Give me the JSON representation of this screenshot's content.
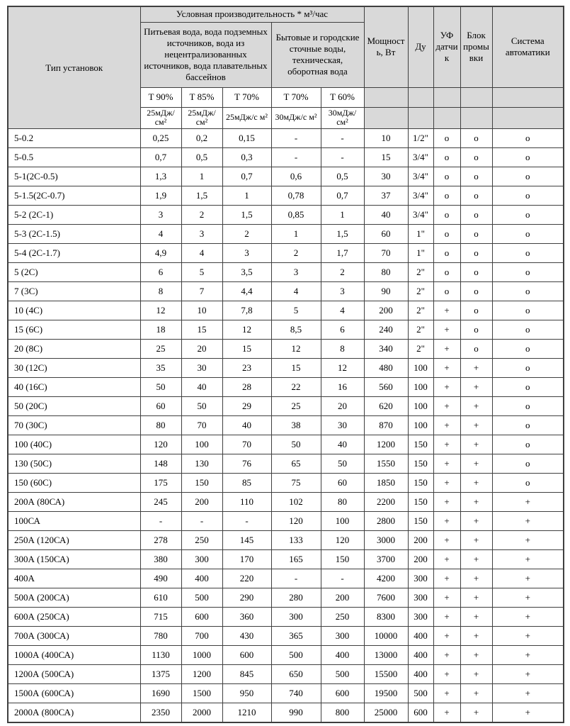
{
  "styles": {
    "header_bg": "#d9d9d9",
    "border_color": "#3f3f3f",
    "text_color": "#000000"
  },
  "table": {
    "header": {
      "type_col": "Тип установок",
      "banner": "Условная производительность * м³/час",
      "group_drinking": "Питьевая вода, вода подземных источников, вода из нецентрализованных источников, вода плавательных бассейнов",
      "group_waste": "Бытовые и городские сточные воды, техническая, оборотная вода",
      "t_labels": [
        {
          "label": "Т 90%",
          "bold": false
        },
        {
          "label": "Т 85%",
          "bold": true
        },
        {
          "label": "Т 70%",
          "bold": false
        },
        {
          "label": "Т 70%",
          "bold": false
        },
        {
          "label": "Т 60%",
          "bold": true
        }
      ],
      "units": [
        {
          "label": "25мДж/ см²",
          "bold": false
        },
        {
          "label": "25мДж/ см²",
          "bold": true
        },
        {
          "label": "25мДж/с м²",
          "bold": false
        },
        {
          "label": "30мДж/с м²",
          "bold": false
        },
        {
          "label": "30мДж/ см²",
          "bold": true
        }
      ],
      "power": "Мощность, Вт",
      "du": "Ду",
      "uv": "УФ датчик",
      "flush": "Блок промывки",
      "automation": "Система автоматики"
    },
    "rows": [
      {
        "type": "5-0.2",
        "t90": "0,25",
        "t85": "0,2",
        "t70_25": "0,15",
        "t70_30": "-",
        "t60": "-",
        "power": "10",
        "du": "1/2\"",
        "uv": "о",
        "flush": "о",
        "auto": "о"
      },
      {
        "type": "5-0.5",
        "t90": "0,7",
        "t85": "0,5",
        "t70_25": "0,3",
        "t70_30": "-",
        "t60": "-",
        "power": "15",
        "du": "3/4\"",
        "uv": "о",
        "flush": "о",
        "auto": "о"
      },
      {
        "type": "5-1(2С-0.5)",
        "t90": "1,3",
        "t85": "1",
        "t70_25": "0,7",
        "t70_30": "0,6",
        "t60": "0,5",
        "power": "30",
        "du": "3/4\"",
        "uv": "о",
        "flush": "о",
        "auto": "о"
      },
      {
        "type": "5-1.5(2С-0.7)",
        "t90": "1,9",
        "t85": "1,5",
        "t70_25": "1",
        "t70_30": "0,78",
        "t60": "0,7",
        "power": "37",
        "du": "3/4\"",
        "uv": "о",
        "flush": "о",
        "auto": "о"
      },
      {
        "type": "5-2 (2С-1)",
        "t90": "3",
        "t85": "2",
        "t70_25": "1,5",
        "t70_30": "0,85",
        "t60": "1",
        "power": "40",
        "du": "3/4\"",
        "uv": "о",
        "flush": "о",
        "auto": "о"
      },
      {
        "type": "5-3 (2С-1.5)",
        "t90": "4",
        "t85": "3",
        "t70_25": "2",
        "t70_30": "1",
        "t60": "1,5",
        "power": "60",
        "du": "1\"",
        "uv": "о",
        "flush": "о",
        "auto": "о"
      },
      {
        "type": "5-4 (2С-1.7)",
        "t90": "4,9",
        "t85": "4",
        "t70_25": "3",
        "t70_30": "2",
        "t60": "1,7",
        "power": "70",
        "du": "1\"",
        "uv": "о",
        "flush": "о",
        "auto": "о"
      },
      {
        "type": "5 (2С)",
        "t90": "6",
        "t85": "5",
        "t70_25": "3,5",
        "t70_30": "3",
        "t60": "2",
        "power": "80",
        "du": "2\"",
        "uv": "о",
        "flush": "о",
        "auto": "о"
      },
      {
        "type": "7 (3С)",
        "t90": "8",
        "t85": "7",
        "t70_25": "4,4",
        "t70_30": "4",
        "t60": "3",
        "power": "90",
        "du": "2\"",
        "uv": "о",
        "flush": "о",
        "auto": "о"
      },
      {
        "type": "10  (4С)",
        "t90": "12",
        "t85": "10",
        "t70_25": "7,8",
        "t70_30": "5",
        "t60": "4",
        "power": "200",
        "du": "2\"",
        "uv": "+",
        "flush": "о",
        "auto": "о"
      },
      {
        "type": "15 (6С)",
        "t90": "18",
        "t85": "15",
        "t70_25": "12",
        "t70_30": "8,5",
        "t60": "6",
        "power": "240",
        "du": "2\"",
        "uv": "+",
        "flush": "о",
        "auto": "о"
      },
      {
        "type": "20 (8С)",
        "t90": "25",
        "t85": "20",
        "t70_25": "15",
        "t70_30": "12",
        "t60": "8",
        "power": "340",
        "du": "2\"",
        "uv": "+",
        "flush": "о",
        "auto": "о"
      },
      {
        "type": "30 (12С)",
        "t90": "35",
        "t85": "30",
        "t70_25": "23",
        "t70_30": "15",
        "t60": "12",
        "power": "480",
        "du": "100",
        "uv": "+",
        "flush": "+",
        "auto": "о"
      },
      {
        "type": "40 (16С)",
        "t90": "50",
        "t85": "40",
        "t70_25": "28",
        "t70_30": "22",
        "t60": "16",
        "power": "560",
        "du": "100",
        "uv": "+",
        "flush": "+",
        "auto": "о"
      },
      {
        "type": "50  (20С)",
        "t90": "60",
        "t85": "50",
        "t70_25": "29",
        "t70_30": "25",
        "t60": "20",
        "power": "620",
        "du": "100",
        "uv": "+",
        "flush": "+",
        "auto": "о"
      },
      {
        "type": "70 (30С)",
        "t90": "80",
        "t85": "70",
        "t70_25": "40",
        "t70_30": "38",
        "t60": "30",
        "power": "870",
        "du": "100",
        "uv": "+",
        "flush": "+",
        "auto": "о"
      },
      {
        "type": "100 (40С)",
        "t90": "120",
        "t85": "100",
        "t70_25": "70",
        "t70_30": "50",
        "t60": "40",
        "power": "1200",
        "du": "150",
        "uv": "+",
        "flush": "+",
        "auto": "о"
      },
      {
        "type": "130 (50С)",
        "t90": "148",
        "t85": "130",
        "t70_25": "76",
        "t70_30": "65",
        "t60": "50",
        "power": "1550",
        "du": "150",
        "uv": "+",
        "flush": "+",
        "auto": "о"
      },
      {
        "type": "150 (60С)",
        "t90": "175",
        "t85": "150",
        "t70_25": "85",
        "t70_30": "75",
        "t60": "60",
        "power": "1850",
        "du": "150",
        "uv": "+",
        "flush": "+",
        "auto": "о"
      },
      {
        "type": "200А (80СА)",
        "t90": "245",
        "t85": "200",
        "t70_25": "110",
        "t70_30": "102",
        "t60": "80",
        "power": "2200",
        "du": "150",
        "uv": "+",
        "flush": "+",
        "auto": "+"
      },
      {
        "type": "100СА",
        "t90": "-",
        "t85": "-",
        "t70_25": "-",
        "t70_30": "120",
        "t60": "100",
        "power": "2800",
        "du": "150",
        "uv": "+",
        "flush": "+",
        "auto": "+"
      },
      {
        "type": "250А (120СА)",
        "t90": "278",
        "t85": "250",
        "t70_25": "145",
        "t70_30": "133",
        "t60": "120",
        "power": "3000",
        "du": "200",
        "uv": "+",
        "flush": "+",
        "auto": "+"
      },
      {
        "type": "300А (150СА)",
        "t90": "380",
        "t85": "300",
        "t70_25": "170",
        "t70_30": "165",
        "t60": "150",
        "power": "3700",
        "du": "200",
        "uv": "+",
        "flush": "+",
        "auto": "+"
      },
      {
        "type": "400А",
        "t90": "490",
        "t85": "400",
        "t70_25": "220",
        "t70_30": "-",
        "t60": "-",
        "power": "4200",
        "du": "300",
        "uv": "+",
        "flush": "+",
        "auto": "+"
      },
      {
        "type": "500А (200СА)",
        "t90": "610",
        "t85": "500",
        "t70_25": "290",
        "t70_30": "280",
        "t60": "200",
        "power": "7600",
        "du": "300",
        "uv": "+",
        "flush": "+",
        "auto": "+"
      },
      {
        "type": "600А  (250СА)",
        "t90": "715",
        "t85": "600",
        "t70_25": "360",
        "t70_30": "300",
        "t60": "250",
        "power": "8300",
        "du": "300",
        "uv": "+",
        "flush": "+",
        "auto": "+",
        "t60_bold": false
      },
      {
        "type": "700А (300СА)",
        "t90": "780",
        "t85": "700",
        "t70_25": "430",
        "t70_30": "365",
        "t60": "300",
        "power": "10000",
        "du": "400",
        "uv": "+",
        "flush": "+",
        "auto": "+"
      },
      {
        "type": "1000А (400СА)",
        "t90": "1130",
        "t85": "1000",
        "t70_25": "600",
        "t70_30": "500",
        "t60": "400",
        "power": "13000",
        "du": "400",
        "uv": "+",
        "flush": "+",
        "auto": "+"
      },
      {
        "type": "1200А (500СА)",
        "t90": "1375",
        "t85": "1200",
        "t70_25": "845",
        "t70_30": "650",
        "t60": "500",
        "power": "15500",
        "du": "400",
        "uv": "+",
        "flush": "+",
        "auto": "+"
      },
      {
        "type": "1500А (600СА)",
        "t90": "1690",
        "t85": "1500",
        "t70_25": "950",
        "t70_30": "740",
        "t60": "600",
        "power": "19500",
        "du": "500",
        "uv": "+",
        "flush": "+",
        "auto": "+"
      },
      {
        "type": "2000А (800СА)",
        "t90": "2350",
        "t85": "2000",
        "t70_25": "1210",
        "t70_30": "990",
        "t60": "800",
        "power": "25000",
        "du": "600",
        "uv": "+",
        "flush": "+",
        "auto": "+"
      }
    ]
  }
}
